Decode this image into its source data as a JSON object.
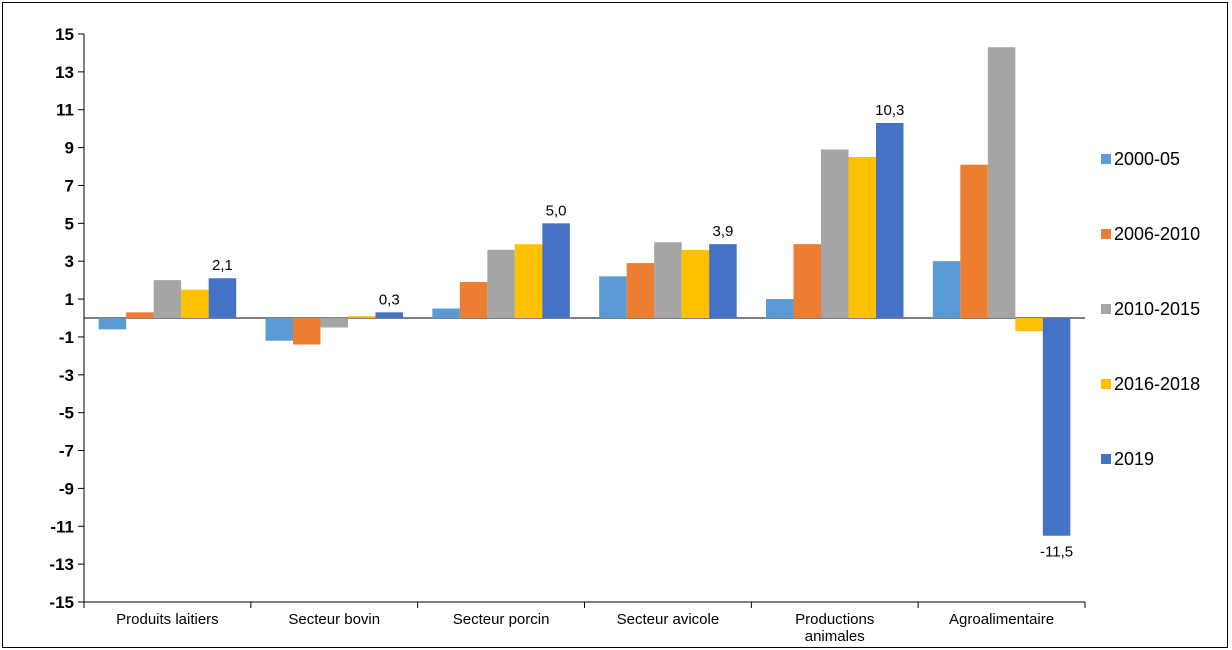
{
  "chart_data": {
    "type": "bar",
    "categories": [
      [
        "Produits laitiers"
      ],
      [
        "Secteur bovin"
      ],
      [
        "Secteur porcin"
      ],
      [
        "Secteur avicole"
      ],
      [
        "Productions",
        "animales"
      ],
      [
        "Agroalimentaire"
      ]
    ],
    "series": [
      {
        "name": "2000-05",
        "color": "#5B9BD5",
        "values": [
          -0.6,
          -1.2,
          0.5,
          2.2,
          1.0,
          3.0
        ]
      },
      {
        "name": "2006-2010",
        "color": "#ED7D31",
        "values": [
          0.3,
          -1.4,
          1.9,
          2.9,
          3.9,
          8.1
        ]
      },
      {
        "name": "2010-2015",
        "color": "#A5A5A5",
        "values": [
          2.0,
          -0.5,
          3.6,
          4.0,
          8.9,
          14.3
        ]
      },
      {
        "name": "2016-2018",
        "color": "#FFC000",
        "values": [
          1.5,
          0.1,
          3.9,
          3.6,
          8.5,
          -0.7
        ]
      },
      {
        "name": "2019",
        "color": "#4472C4",
        "values": [
          2.1,
          0.3,
          5.0,
          3.9,
          10.3,
          -11.5
        ]
      }
    ],
    "data_labels": [
      "2,1",
      "0,3",
      "5,0",
      "3,9",
      "10,3",
      "-11,5"
    ],
    "data_label_series": 4,
    "y_ticks": [
      "15",
      "13",
      "11",
      "9",
      "7",
      "5",
      "3",
      "1",
      "-1",
      "-3",
      "-5",
      "-7",
      "-9",
      "-11",
      "-13",
      "-15"
    ],
    "ylim": [
      -15,
      15
    ],
    "grid": false,
    "legend": "right",
    "title": "",
    "xlabel": "",
    "ylabel": ""
  }
}
